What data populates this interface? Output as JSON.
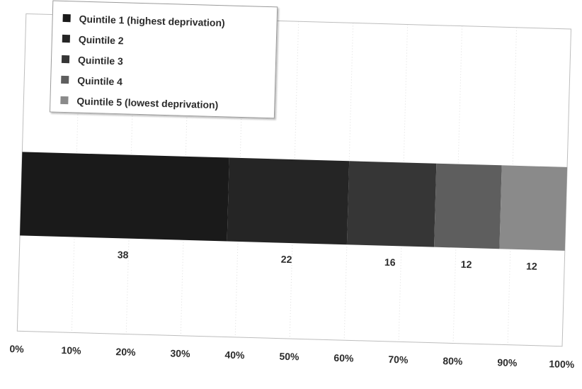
{
  "chart_data": {
    "type": "bar",
    "orientation": "horizontal",
    "stacked": true,
    "title": "",
    "xlabel": "",
    "ylabel": "",
    "xlim": [
      0,
      100
    ],
    "x_ticks": [
      "0%",
      "10%",
      "20%",
      "30%",
      "40%",
      "50%",
      "60%",
      "70%",
      "80%",
      "90%",
      "100%"
    ],
    "grid": true,
    "legend_position": "top-left",
    "series": [
      {
        "name": "Quintile 1 (highest deprivation)",
        "value": 38,
        "label": "38",
        "color": "#1a1a1a"
      },
      {
        "name": "Quintile 2",
        "value": 22,
        "label": "22",
        "color": "#252525"
      },
      {
        "name": "Quintile 3",
        "value": 16,
        "label": "16",
        "color": "#363636"
      },
      {
        "name": "Quintile 4",
        "value": 12,
        "label": "12",
        "color": "#5e5e5e"
      },
      {
        "name": "Quintile 5 (lowest deprivation)",
        "value": 12,
        "label": "12",
        "color": "#8a8a8a"
      }
    ]
  }
}
